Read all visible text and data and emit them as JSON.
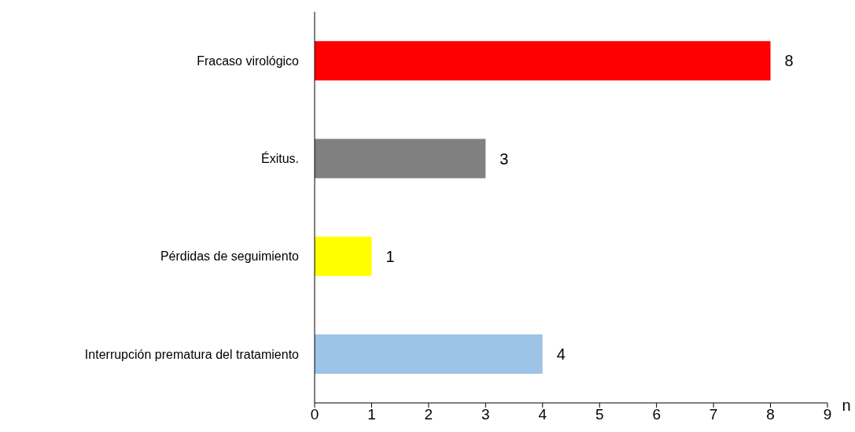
{
  "chart_data": {
    "type": "bar",
    "orientation": "horizontal",
    "xlabel": "n",
    "categories": [
      "Fracaso virológico",
      "Éxitus.",
      "Pérdidas de seguimiento",
      "Interrupción prematura del tratamiento"
    ],
    "values": [
      8,
      3,
      1,
      4
    ],
    "colors": [
      "#ff0000",
      "#808080",
      "#ffff00",
      "#9dc3e6"
    ],
    "xlim": [
      0,
      9
    ],
    "xticks": [
      0,
      1,
      2,
      3,
      4,
      5,
      6,
      7,
      8,
      9
    ],
    "data_labels": true,
    "grid": false,
    "legend": false
  }
}
